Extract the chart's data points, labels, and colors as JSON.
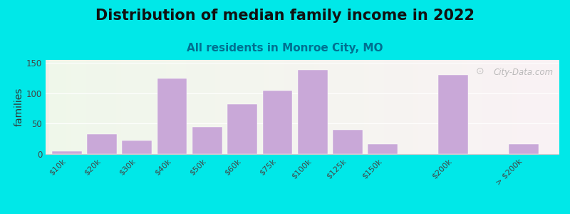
{
  "title": "Distribution of median family income in 2022",
  "subtitle": "All residents in Monroe City, MO",
  "ylabel": "families",
  "categories": [
    "$10k",
    "$20k",
    "$30k",
    "$40k",
    "$50k",
    "$60k",
    "$75k",
    "$100k",
    "$125k",
    "$150k",
    "$200k",
    "> $200k"
  ],
  "values": [
    5,
    33,
    22,
    125,
    45,
    82,
    104,
    138,
    40,
    17,
    130,
    17
  ],
  "x_positions": [
    0,
    1,
    2,
    3,
    4,
    5,
    6,
    7,
    8,
    9,
    11,
    13
  ],
  "bar_color": "#c9a8d8",
  "background_color": "#00e8e8",
  "ylim": [
    0,
    155
  ],
  "yticks": [
    0,
    50,
    100,
    150
  ],
  "title_fontsize": 15,
  "subtitle_fontsize": 11,
  "subtitle_color": "#007090",
  "ylabel_fontsize": 10,
  "watermark_text": "City-Data.com",
  "tick_label_fontsize": 8
}
